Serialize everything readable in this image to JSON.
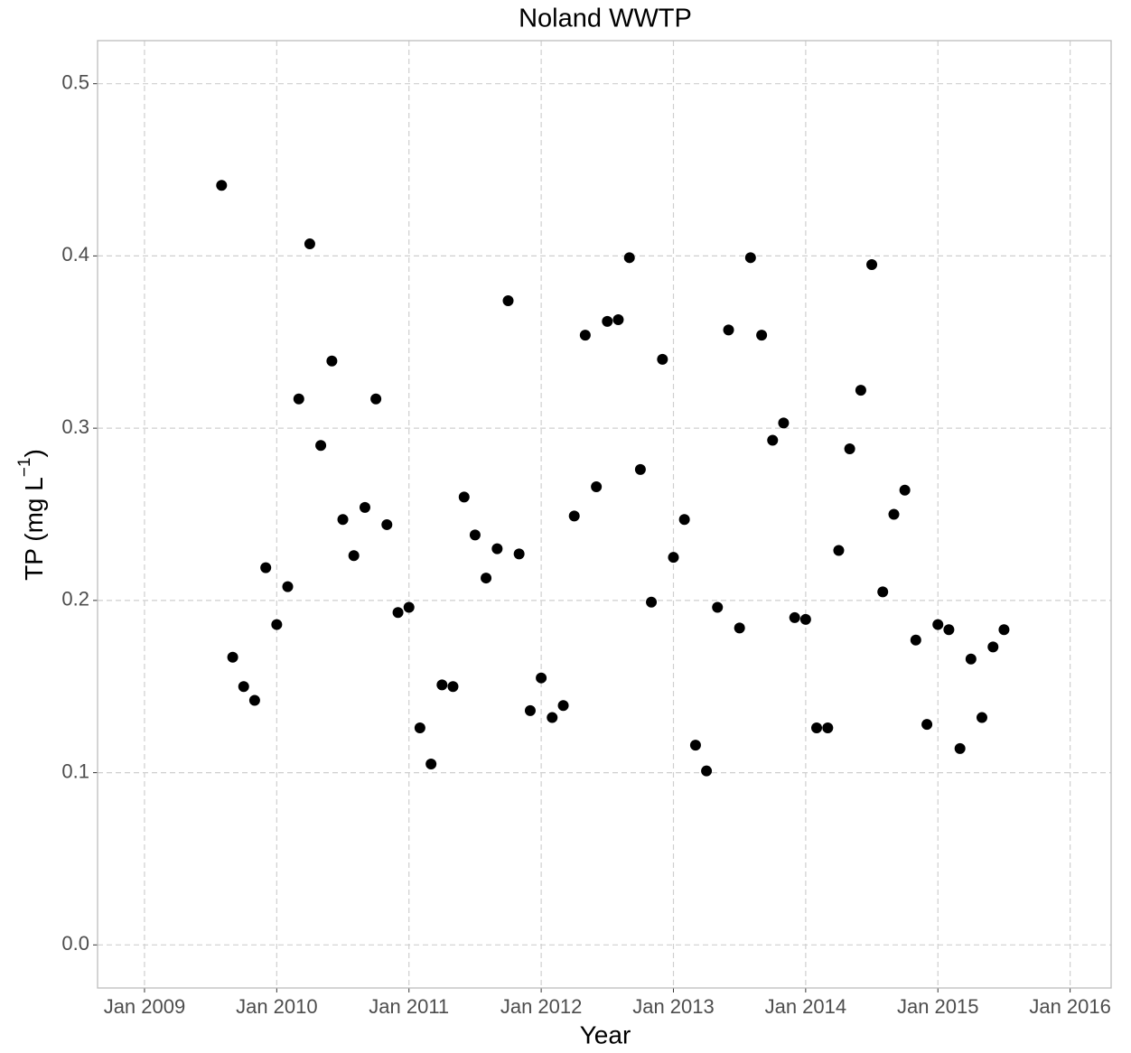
{
  "chart_data": {
    "type": "scatter",
    "title": "Noland WWTP",
    "xlabel": "Year",
    "ylabel": {
      "text": "TP (mg L",
      "superscript": "−1",
      "suffix": ")"
    },
    "xlim": [
      2008.645,
      2016.31
    ],
    "ylim": [
      -0.025,
      0.525
    ],
    "xticks": [
      {
        "value": 2009,
        "label": "Jan 2009"
      },
      {
        "value": 2010,
        "label": "Jan 2010"
      },
      {
        "value": 2011,
        "label": "Jan 2011"
      },
      {
        "value": 2012,
        "label": "Jan 2012"
      },
      {
        "value": 2013,
        "label": "Jan 2013"
      },
      {
        "value": 2014,
        "label": "Jan 2014"
      },
      {
        "value": 2015,
        "label": "Jan 2015"
      },
      {
        "value": 2016,
        "label": "Jan 2016"
      }
    ],
    "yticks": [
      {
        "value": 0,
        "label": "0.0"
      },
      0.1,
      0.2,
      0.3,
      0.4,
      0.5
    ],
    "grid": true,
    "color": "#000000",
    "x": [
      2009.583,
      2009.667,
      2009.75,
      2009.833,
      2009.917,
      2010.0,
      2010.083,
      2010.167,
      2010.25,
      2010.333,
      2010.417,
      2010.5,
      2010.583,
      2010.667,
      2010.75,
      2010.833,
      2010.917,
      2011.0,
      2011.083,
      2011.167,
      2011.25,
      2011.333,
      2011.417,
      2011.5,
      2011.583,
      2011.667,
      2011.75,
      2011.833,
      2011.917,
      2012.0,
      2012.083,
      2012.167,
      2012.25,
      2012.333,
      2012.417,
      2012.5,
      2012.583,
      2012.667,
      2012.75,
      2012.833,
      2012.917,
      2013.0,
      2013.083,
      2013.167,
      2013.25,
      2013.333,
      2013.417,
      2013.5,
      2013.583,
      2013.667,
      2013.75,
      2013.833,
      2013.917,
      2014.0,
      2014.083,
      2014.167,
      2014.25,
      2014.333,
      2014.417,
      2014.5,
      2014.583,
      2014.667,
      2014.75,
      2014.833,
      2014.917,
      2015.0,
      2015.083,
      2015.167,
      2015.25,
      2015.333,
      2015.417,
      2015.5
    ],
    "values": [
      0.441,
      0.167,
      0.15,
      0.142,
      0.219,
      0.186,
      0.208,
      0.317,
      0.407,
      0.29,
      0.339,
      0.247,
      0.226,
      0.254,
      0.317,
      0.244,
      0.193,
      0.196,
      0.126,
      0.105,
      0.151,
      0.15,
      0.26,
      0.238,
      0.213,
      0.23,
      0.374,
      0.227,
      0.136,
      0.155,
      0.132,
      0.139,
      0.249,
      0.354,
      0.266,
      0.362,
      0.363,
      0.399,
      0.276,
      0.199,
      0.34,
      0.225,
      0.247,
      0.116,
      0.101,
      0.196,
      0.357,
      0.184,
      0.399,
      0.354,
      0.293,
      0.303,
      0.19,
      0.189,
      0.126,
      0.126,
      0.229,
      0.288,
      0.322,
      0.395,
      0.205,
      0.25,
      0.264,
      0.177,
      0.128,
      0.186,
      0.183,
      0.114,
      0.166,
      0.132,
      0.173,
      0.183
    ]
  }
}
